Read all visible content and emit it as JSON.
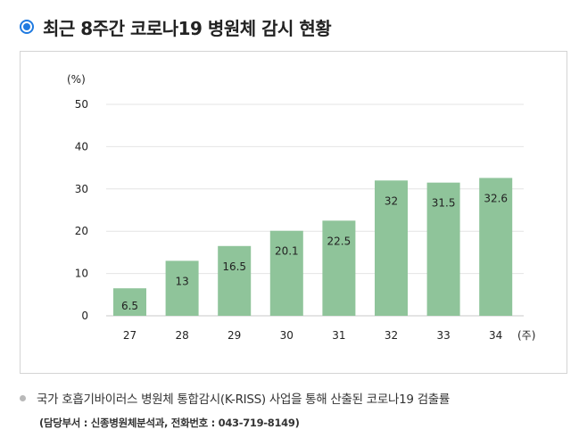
{
  "heading": {
    "title": "최근 8주간 코로나19 병원체 감시 현황"
  },
  "chart_data": {
    "type": "bar",
    "ylabel": "(%)",
    "xlabel": "(주)",
    "categories": [
      "27",
      "28",
      "29",
      "30",
      "31",
      "32",
      "33",
      "34"
    ],
    "values": [
      6.5,
      13,
      16.5,
      20.1,
      22.5,
      32,
      31.5,
      32.6
    ],
    "data_labels": [
      "6.5",
      "13",
      "16.5",
      "20.1",
      "22.5",
      "32",
      "31.5",
      "32.6"
    ],
    "yticks": [
      0,
      10,
      20,
      30,
      40,
      50
    ],
    "ylim": [
      0,
      50
    ],
    "grid": true,
    "bar_color": "#8fc49a"
  },
  "footer": {
    "note": "국가 호흡기바이러스 병원체 통합감시(K-RISS) 사업을 통해 산출된 코로나19 검출률",
    "contact": "(담당부서 : 신종병원체분석과, 전화번호 : 043-719-8149)"
  }
}
